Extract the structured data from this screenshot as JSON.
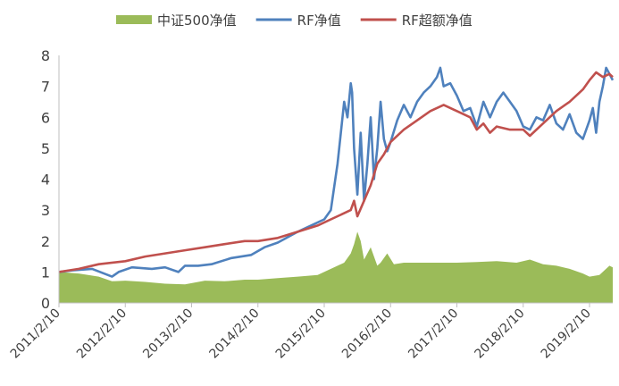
{
  "chart_data": {
    "type": "line",
    "legend": {
      "placement": "top"
    },
    "xaxis": {
      "ticks": [
        "2011/2/10",
        "2012/2/10",
        "2013/2/10",
        "2014/2/10",
        "2015/2/10",
        "2016/2/10",
        "2017/2/10",
        "2018/2/10",
        "2019/2/10"
      ]
    },
    "yaxis": {
      "ylim": [
        0,
        8
      ],
      "ticks": [
        "0",
        "1",
        "2",
        "3",
        "4",
        "5",
        "6",
        "7",
        "8"
      ]
    },
    "grid": false,
    "series": [
      {
        "name": "中证500净值",
        "style": "area",
        "color": "#9bbb59",
        "x": [
          2011.0,
          2011.3,
          2011.6,
          2011.8,
          2012.0,
          2012.3,
          2012.6,
          2012.9,
          2013.2,
          2013.5,
          2013.8,
          2014.0,
          2014.3,
          2014.6,
          2014.9,
          2015.1,
          2015.3,
          2015.4,
          2015.45,
          2015.5,
          2015.55,
          2015.6,
          2015.7,
          2015.8,
          2015.85,
          2015.95,
          2016.05,
          2016.2,
          2016.5,
          2016.8,
          2017.0,
          2017.3,
          2017.6,
          2017.9,
          2018.1,
          2018.3,
          2018.5,
          2018.7,
          2018.9,
          2019.0,
          2019.15,
          2019.3,
          2019.35
        ],
        "y": [
          1.0,
          0.95,
          0.85,
          0.7,
          0.72,
          0.68,
          0.62,
          0.6,
          0.72,
          0.7,
          0.75,
          0.75,
          0.8,
          0.85,
          0.9,
          1.1,
          1.3,
          1.6,
          1.9,
          2.3,
          2.0,
          1.4,
          1.8,
          1.2,
          1.3,
          1.6,
          1.25,
          1.3,
          1.3,
          1.3,
          1.3,
          1.32,
          1.35,
          1.3,
          1.4,
          1.25,
          1.2,
          1.1,
          0.95,
          0.85,
          0.9,
          1.2,
          1.15
        ]
      },
      {
        "name": "RF净值",
        "style": "line",
        "color": "#4f81bd",
        "x": [
          2011.0,
          2011.2,
          2011.5,
          2011.8,
          2011.9,
          2012.1,
          2012.4,
          2012.6,
          2012.8,
          2012.9,
          2013.1,
          2013.3,
          2013.6,
          2013.9,
          2014.1,
          2014.3,
          2014.6,
          2014.8,
          2015.0,
          2015.1,
          2015.2,
          2015.25,
          2015.3,
          2015.35,
          2015.4,
          2015.42,
          2015.45,
          2015.5,
          2015.55,
          2015.6,
          2015.65,
          2015.7,
          2015.75,
          2015.8,
          2015.85,
          2015.9,
          2015.95,
          2016.0,
          2016.1,
          2016.2,
          2016.3,
          2016.4,
          2016.5,
          2016.6,
          2016.7,
          2016.75,
          2016.8,
          2016.9,
          2017.0,
          2017.1,
          2017.2,
          2017.3,
          2017.4,
          2017.5,
          2017.6,
          2017.7,
          2017.8,
          2017.9,
          2018.0,
          2018.1,
          2018.2,
          2018.3,
          2018.4,
          2018.5,
          2018.6,
          2018.7,
          2018.8,
          2018.9,
          2019.0,
          2019.05,
          2019.1,
          2019.15,
          2019.2,
          2019.25,
          2019.3,
          2019.35
        ],
        "y": [
          1.0,
          1.05,
          1.1,
          0.85,
          1.0,
          1.15,
          1.1,
          1.15,
          1.0,
          1.2,
          1.2,
          1.25,
          1.45,
          1.55,
          1.8,
          1.95,
          2.3,
          2.5,
          2.7,
          3.0,
          4.5,
          5.5,
          6.5,
          6.0,
          7.1,
          6.8,
          5.0,
          3.5,
          5.5,
          3.3,
          4.5,
          6.0,
          4.0,
          5.0,
          6.5,
          5.3,
          4.9,
          5.2,
          5.9,
          6.4,
          6.0,
          6.5,
          6.8,
          7.0,
          7.3,
          7.6,
          7.0,
          7.1,
          6.7,
          6.2,
          6.3,
          5.7,
          6.5,
          6.0,
          6.5,
          6.8,
          6.5,
          6.2,
          5.7,
          5.6,
          6.0,
          5.9,
          6.4,
          5.8,
          5.6,
          6.1,
          5.5,
          5.3,
          5.9,
          6.3,
          5.5,
          6.5,
          7.0,
          7.6,
          7.4,
          7.2
        ]
      },
      {
        "name": "RF超额净值",
        "style": "line",
        "color": "#c0504d",
        "x": [
          2011.0,
          2011.3,
          2011.6,
          2012.0,
          2012.3,
          2012.6,
          2012.9,
          2013.2,
          2013.5,
          2013.8,
          2014.0,
          2014.3,
          2014.6,
          2014.9,
          2015.1,
          2015.3,
          2015.4,
          2015.45,
          2015.5,
          2015.6,
          2015.7,
          2015.8,
          2015.9,
          2016.0,
          2016.2,
          2016.4,
          2016.6,
          2016.8,
          2017.0,
          2017.2,
          2017.3,
          2017.4,
          2017.5,
          2017.6,
          2017.8,
          2018.0,
          2018.1,
          2018.3,
          2018.5,
          2018.7,
          2018.9,
          2019.0,
          2019.1,
          2019.2,
          2019.3,
          2019.35
        ],
        "y": [
          1.0,
          1.1,
          1.25,
          1.35,
          1.5,
          1.6,
          1.7,
          1.8,
          1.9,
          2.0,
          2.0,
          2.1,
          2.3,
          2.5,
          2.7,
          2.9,
          3.0,
          3.3,
          2.8,
          3.3,
          3.8,
          4.5,
          4.8,
          5.2,
          5.6,
          5.9,
          6.2,
          6.4,
          6.2,
          6.0,
          5.6,
          5.8,
          5.5,
          5.7,
          5.6,
          5.6,
          5.4,
          5.8,
          6.2,
          6.5,
          6.9,
          7.2,
          7.45,
          7.3,
          7.4,
          7.3
        ]
      }
    ]
  }
}
